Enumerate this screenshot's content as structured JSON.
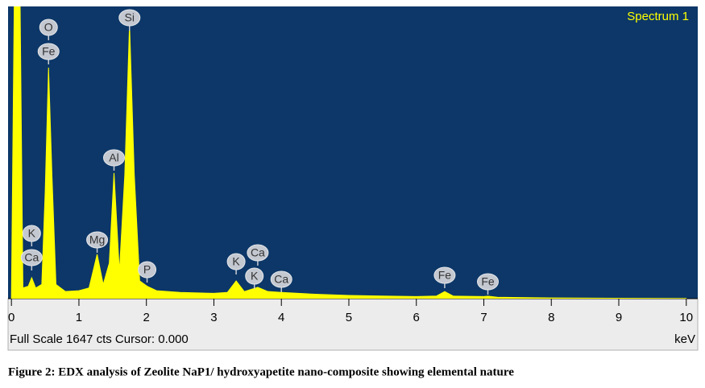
{
  "chart_data": {
    "type": "area",
    "title": "Spectrum 1",
    "x_label": "keV",
    "footer": "Full Scale 1647 cts Cursor: 0.000",
    "caption": "Figure 2: EDX analysis of Zeolite NaP1/ hydroxyapetite nano-composite showing elemental nature",
    "color": "#ffff00",
    "background": "#0c3768",
    "x": [
      0,
      0.05,
      0.12,
      0.17,
      0.25,
      0.3,
      0.36,
      0.45,
      0.5,
      0.55,
      0.6,
      0.66,
      0.8,
      1.0,
      1.15,
      1.27,
      1.36,
      1.45,
      1.52,
      1.6,
      1.68,
      1.75,
      1.82,
      1.9,
      2.01,
      2.15,
      2.5,
      3.0,
      3.2,
      3.33,
      3.45,
      3.65,
      3.8,
      4.0,
      4.5,
      5.0,
      5.5,
      6.0,
      6.3,
      6.42,
      6.55,
      7.0,
      7.06,
      7.2,
      8.0,
      9.0,
      10.0
    ],
    "values": [
      0,
      2000,
      2000,
      60,
      70,
      118,
      60,
      80,
      600,
      1302,
      700,
      80,
      40,
      45,
      60,
      250,
      80,
      200,
      708,
      150,
      700,
      1547,
      700,
      100,
      70,
      45,
      35,
      30,
      35,
      100,
      40,
      64,
      40,
      35,
      25,
      18,
      15,
      12,
      15,
      40,
      14,
      12,
      14,
      8,
      4,
      2,
      1
    ],
    "xlim": [
      -0.05,
      10.17
    ],
    "ylim": [
      0,
      1647
    ],
    "xticks": [
      0,
      1,
      2,
      3,
      4,
      5,
      6,
      7,
      8,
      9,
      10
    ],
    "peak_labels": [
      {
        "text": "K",
        "x": 0.3
      },
      {
        "text": "Ca",
        "x": 0.3
      },
      {
        "text": "O",
        "x": 0.55
      },
      {
        "text": "Fe",
        "x": 0.55
      },
      {
        "text": "Mg",
        "x": 1.27
      },
      {
        "text": "Al",
        "x": 1.52
      },
      {
        "text": "Si",
        "x": 1.75
      },
      {
        "text": "P",
        "x": 2.01
      },
      {
        "text": "K",
        "x": 3.33
      },
      {
        "text": "Ca",
        "x": 3.65
      },
      {
        "text": "K",
        "x": 3.6
      },
      {
        "text": "Ca",
        "x": 4.0
      },
      {
        "text": "Fe",
        "x": 6.42
      },
      {
        "text": "Fe",
        "x": 7.06
      }
    ]
  }
}
